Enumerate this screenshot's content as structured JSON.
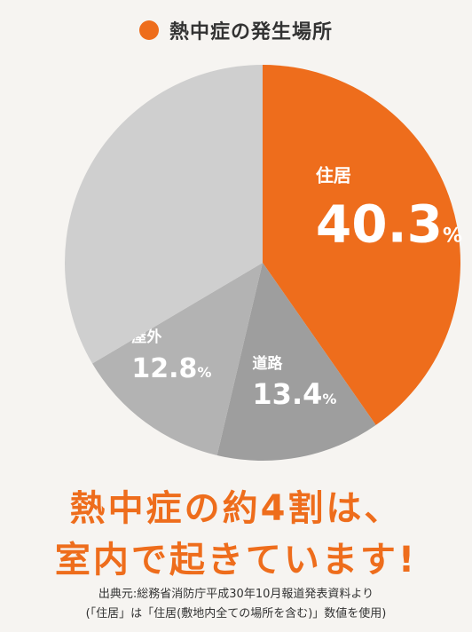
{
  "legend": {
    "title": "熱中症の発生場所",
    "color": "#ee6d1c"
  },
  "chart_data": {
    "type": "pie",
    "title": "熱中症の発生場所",
    "slices": [
      {
        "label": "住居",
        "value": 40.3,
        "color": "#ee6d1c"
      },
      {
        "label": "道路",
        "value": 13.4,
        "color": "#9e9e9e"
      },
      {
        "label": "屋外",
        "value": 12.8,
        "color": "#b3b3b3"
      },
      {
        "label": "",
        "value": 33.5,
        "color": "#cfcfcf"
      }
    ],
    "unit": "%"
  },
  "headline": {
    "line1": "熱中症の約4割は、",
    "line2": "室内で起きています!"
  },
  "source": {
    "line1": "出典元:総務省消防庁平成30年10月報道発表資料より",
    "line2": "(「住居」は「住居(敷地内全ての場所を含む)」数値を使用)"
  }
}
